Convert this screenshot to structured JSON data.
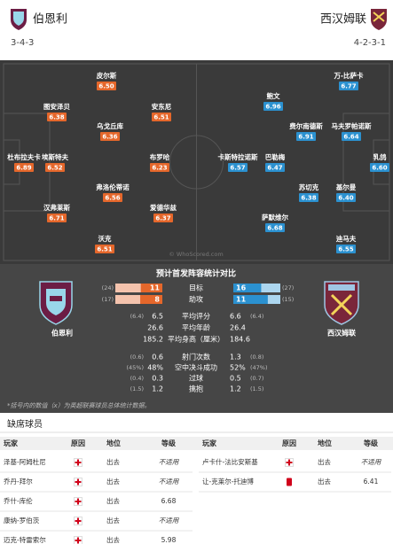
{
  "header": {
    "home": {
      "name": "伯恩利",
      "formation": "3-4-3"
    },
    "away": {
      "name": "西汉姆联",
      "formation": "4-2-3-1"
    }
  },
  "pitch": {
    "watermark": "© WhoScored.com",
    "home_players": [
      {
        "name": "杜布拉夫卡",
        "rating": "6.89"
      },
      {
        "name": "图安泽贝",
        "rating": "6.38"
      },
      {
        "name": "埃斯特夫",
        "rating": "6.52"
      },
      {
        "name": "汉弗莱斯",
        "rating": "6.71"
      },
      {
        "name": "皮尔斯",
        "rating": "6.50"
      },
      {
        "name": "乌戈丘库",
        "rating": "6.36"
      },
      {
        "name": "弗洛伦蒂诺",
        "rating": "6.56"
      },
      {
        "name": "沃克",
        "rating": "6.51"
      },
      {
        "name": "安东尼",
        "rating": "6.51"
      },
      {
        "name": "布罗哈",
        "rating": "6.23"
      },
      {
        "name": "爱德华兹",
        "rating": "6.37"
      }
    ],
    "away_players": [
      {
        "name": "乳鸽",
        "rating": "6.60"
      },
      {
        "name": "万-比萨卡",
        "rating": "6.77"
      },
      {
        "name": "马夫罗帕诺斯",
        "rating": "6.64"
      },
      {
        "name": "基尔曼",
        "rating": "6.40"
      },
      {
        "name": "迪马夫",
        "rating": "6.55"
      },
      {
        "name": "费尔南德斯",
        "rating": "6.91"
      },
      {
        "name": "苏切克",
        "rating": "6.38"
      },
      {
        "name": "鲍文",
        "rating": "6.96"
      },
      {
        "name": "巴勒梅",
        "rating": "6.47"
      },
      {
        "name": "萨默维尔",
        "rating": "6.68"
      },
      {
        "name": "卡斯特拉诺斯",
        "rating": "6.57"
      }
    ]
  },
  "comparison": {
    "title": "预计首发阵容统计对比",
    "home_label": "伯恩利",
    "away_label": "西汉姆联",
    "bar_rows": [
      {
        "label": "目标",
        "home": {
          "value": 11,
          "league": {
            "value": 24,
            "label": "(24)"
          }
        },
        "away": {
          "value": 16,
          "league": {
            "value": 27,
            "label": "(27)"
          }
        }
      },
      {
        "label": "助攻",
        "home": {
          "value": 8,
          "league": {
            "value": 17,
            "label": "(17)"
          }
        },
        "away": {
          "value": 11,
          "league": {
            "value": 15,
            "label": "(15)"
          }
        }
      }
    ],
    "rows": [
      {
        "label": "平均评分",
        "home_league": "(6.4)",
        "home": "6.5",
        "away": "6.6",
        "away_league": "(6.4)"
      },
      {
        "label": "平均年龄",
        "home": "26.6",
        "away": "26.4"
      },
      {
        "label": "平均身高（厘米）",
        "home": "185.2",
        "away": "184.6"
      },
      {
        "label": "射门次数",
        "home_league": "(0.6)",
        "home": "0.6",
        "away": "1.3",
        "away_league": "(0.8)"
      },
      {
        "label": "空中决斗成功",
        "home_league": "(45%)",
        "home": "48%",
        "away": "52%",
        "away_league": "(47%)"
      },
      {
        "label": "过球",
        "home_league": "(0.4)",
        "home": "0.3",
        "away": "0.5",
        "away_league": "(0.7)"
      },
      {
        "label": "擒抱",
        "home_league": "(1.5)",
        "home": "1.2",
        "away": "1.2",
        "away_league": "(1.5)"
      }
    ],
    "footnote": "*括号内的数值（x）为英超联赛球员总体统计数据。"
  },
  "absent": {
    "title": "缺席球员",
    "columns": [
      "玩家",
      "原因",
      "地位",
      "等级"
    ],
    "home": [
      {
        "player": "泽基-阿姆杜尼",
        "status": "出去",
        "rating": "不适用"
      },
      {
        "player": "乔丹-拜尔",
        "status": "出去",
        "rating": "不适用"
      },
      {
        "player": "乔什-库伦",
        "status": "出去",
        "rating": "6.68"
      },
      {
        "player": "康纳-罗伯茨",
        "status": "出去",
        "rating": "不适用"
      },
      {
        "player": "迈克-特雷索尔",
        "status": "出去",
        "rating": "5.98"
      }
    ],
    "away": [
      {
        "player": "卢卡什-法比安斯基",
        "status": "出去",
        "rating": "不适用"
      },
      {
        "player": "让-克莱尔-托迪博",
        "status": "出去",
        "rating": "6.41"
      }
    ]
  }
}
